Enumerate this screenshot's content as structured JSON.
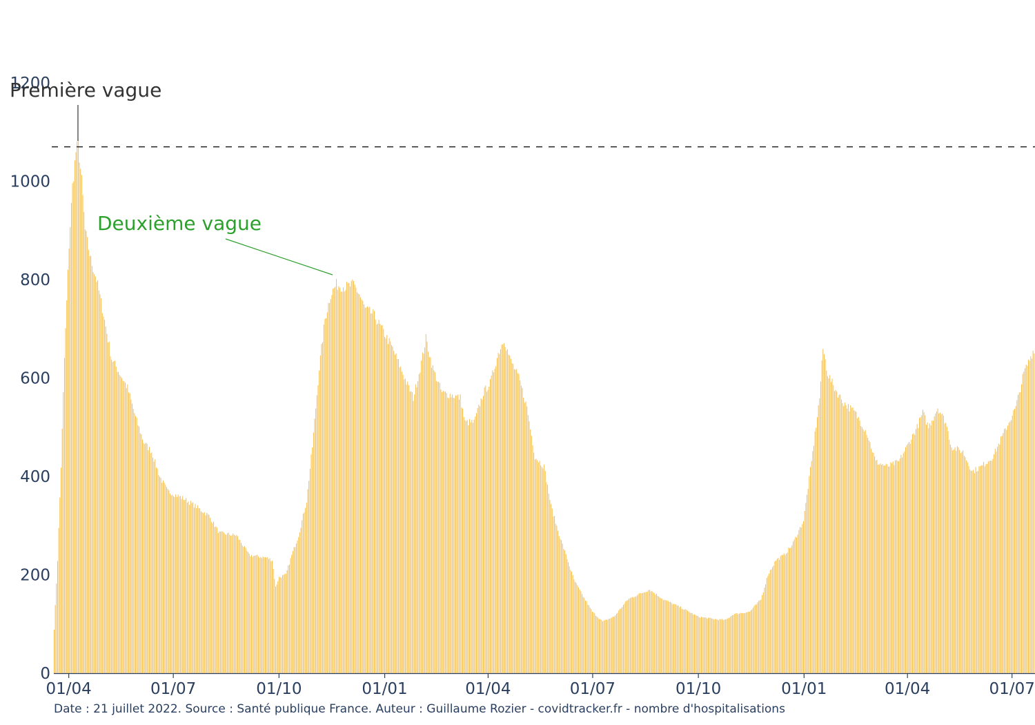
{
  "footer_text": "Date : 21 juillet 2022. Source : Santé publique France. Auteur : Guillaume Rozier - covidtracker.fr - nombre d'hospitalisations",
  "colors": {
    "bar": "#f5b841",
    "axis_text": "#2a3f5f",
    "first_wave": "#333333",
    "second_wave": "#2ca02c"
  },
  "chart_data": {
    "type": "bar",
    "title": "",
    "xlabel": "",
    "ylabel": "",
    "x_range": [
      "2020-03-19",
      "2022-07-21"
    ],
    "ylim": [
      0,
      1200
    ],
    "y_ticks": [
      0,
      200,
      400,
      600,
      800,
      1000,
      1200
    ],
    "x_ticks": [
      {
        "date": "2020-04-01",
        "label": "01/04"
      },
      {
        "date": "2020-07-01",
        "label": "01/07"
      },
      {
        "date": "2020-10-01",
        "label": "01/10"
      },
      {
        "date": "2021-01-01",
        "label": "01/01"
      },
      {
        "date": "2021-04-01",
        "label": "01/04"
      },
      {
        "date": "2021-07-01",
        "label": "01/07"
      },
      {
        "date": "2021-10-01",
        "label": "01/10"
      },
      {
        "date": "2022-01-01",
        "label": "01/01"
      },
      {
        "date": "2022-04-01",
        "label": "01/04"
      },
      {
        "date": "2022-07-01",
        "label": "01/07"
      }
    ],
    "series": [
      {
        "values_note": "",
        "keypoints": [
          [
            "2020-03-19",
            90
          ],
          [
            "2020-03-22",
            230
          ],
          [
            "2020-03-25",
            420
          ],
          [
            "2020-03-28",
            640
          ],
          [
            "2020-04-01",
            870
          ],
          [
            "2020-04-04",
            990
          ],
          [
            "2020-04-07",
            1060
          ],
          [
            "2020-04-09",
            1075
          ],
          [
            "2020-04-12",
            1000
          ],
          [
            "2020-04-15",
            900
          ],
          [
            "2020-04-20",
            840
          ],
          [
            "2020-04-25",
            800
          ],
          [
            "2020-05-01",
            730
          ],
          [
            "2020-05-08",
            640
          ],
          [
            "2020-05-15",
            610
          ],
          [
            "2020-05-22",
            580
          ],
          [
            "2020-05-29",
            520
          ],
          [
            "2020-06-05",
            470
          ],
          [
            "2020-06-12",
            450
          ],
          [
            "2020-06-19",
            400
          ],
          [
            "2020-06-26",
            370
          ],
          [
            "2020-07-10",
            355
          ],
          [
            "2020-07-20",
            340
          ],
          [
            "2020-08-01",
            320
          ],
          [
            "2020-08-10",
            285
          ],
          [
            "2020-08-25",
            280
          ],
          [
            "2020-09-05",
            240
          ],
          [
            "2020-09-20",
            235
          ],
          [
            "2020-09-25",
            230
          ],
          [
            "2020-09-28",
            175
          ],
          [
            "2020-10-01",
            195
          ],
          [
            "2020-10-07",
            200
          ],
          [
            "2020-10-12",
            240
          ],
          [
            "2020-10-18",
            280
          ],
          [
            "2020-10-25",
            350
          ],
          [
            "2020-10-30",
            460
          ],
          [
            "2020-11-05",
            620
          ],
          [
            "2020-11-10",
            720
          ],
          [
            "2020-11-15",
            770
          ],
          [
            "2020-11-20",
            790
          ],
          [
            "2020-11-28",
            785
          ],
          [
            "2020-12-05",
            790
          ],
          [
            "2020-12-10",
            770
          ],
          [
            "2020-12-15",
            740
          ],
          [
            "2020-12-22",
            730
          ],
          [
            "2021-01-01",
            690
          ],
          [
            "2021-01-08",
            660
          ],
          [
            "2021-01-15",
            620
          ],
          [
            "2021-01-22",
            580
          ],
          [
            "2021-01-26",
            560
          ],
          [
            "2021-02-01",
            620
          ],
          [
            "2021-02-06",
            680
          ],
          [
            "2021-02-12",
            620
          ],
          [
            "2021-02-20",
            570
          ],
          [
            "2021-03-01",
            565
          ],
          [
            "2021-03-08",
            560
          ],
          [
            "2021-03-12",
            510
          ],
          [
            "2021-03-20",
            510
          ],
          [
            "2021-03-28",
            570
          ],
          [
            "2021-04-03",
            590
          ],
          [
            "2021-04-10",
            650
          ],
          [
            "2021-04-15",
            680
          ],
          [
            "2021-04-20",
            640
          ],
          [
            "2021-04-28",
            600
          ],
          [
            "2021-05-05",
            540
          ],
          [
            "2021-05-12",
            440
          ],
          [
            "2021-05-20",
            420
          ],
          [
            "2021-05-26",
            340
          ],
          [
            "2021-06-01",
            290
          ],
          [
            "2021-06-08",
            240
          ],
          [
            "2021-06-15",
            190
          ],
          [
            "2021-06-22",
            160
          ],
          [
            "2021-07-01",
            125
          ],
          [
            "2021-07-10",
            105
          ],
          [
            "2021-07-20",
            115
          ],
          [
            "2021-08-01",
            150
          ],
          [
            "2021-08-10",
            160
          ],
          [
            "2021-08-20",
            170
          ],
          [
            "2021-09-01",
            150
          ],
          [
            "2021-09-15",
            135
          ],
          [
            "2021-10-01",
            115
          ],
          [
            "2021-10-15",
            110
          ],
          [
            "2021-10-25",
            108
          ],
          [
            "2021-11-01",
            120
          ],
          [
            "2021-11-15",
            125
          ],
          [
            "2021-11-25",
            150
          ],
          [
            "2021-12-01",
            200
          ],
          [
            "2021-12-08",
            230
          ],
          [
            "2021-12-15",
            240
          ],
          [
            "2021-12-22",
            260
          ],
          [
            "2022-01-01",
            310
          ],
          [
            "2022-01-08",
            430
          ],
          [
            "2022-01-15",
            560
          ],
          [
            "2022-01-18",
            660
          ],
          [
            "2022-01-22",
            610
          ],
          [
            "2022-01-28",
            580
          ],
          [
            "2022-02-05",
            550
          ],
          [
            "2022-02-15",
            530
          ],
          [
            "2022-02-25",
            490
          ],
          [
            "2022-03-05",
            430
          ],
          [
            "2022-03-15",
            420
          ],
          [
            "2022-03-25",
            430
          ],
          [
            "2022-04-01",
            460
          ],
          [
            "2022-04-10",
            500
          ],
          [
            "2022-04-15",
            530
          ],
          [
            "2022-04-20",
            500
          ],
          [
            "2022-04-28",
            540
          ],
          [
            "2022-05-05",
            510
          ],
          [
            "2022-05-10",
            460
          ],
          [
            "2022-05-20",
            450
          ],
          [
            "2022-05-28",
            410
          ],
          [
            "2022-06-05",
            420
          ],
          [
            "2022-06-15",
            440
          ],
          [
            "2022-06-25",
            490
          ],
          [
            "2022-07-05",
            540
          ],
          [
            "2022-07-12",
            610
          ],
          [
            "2022-07-21",
            660
          ]
        ]
      }
    ],
    "reference_line": {
      "y": 1070,
      "style": "dashed"
    },
    "annotations": [
      {
        "text": "Première vague",
        "date": "2020-04-09",
        "y": 1075
      },
      {
        "text": "Deuxième vague",
        "date": "2020-11-15",
        "y": 800
      }
    ]
  }
}
